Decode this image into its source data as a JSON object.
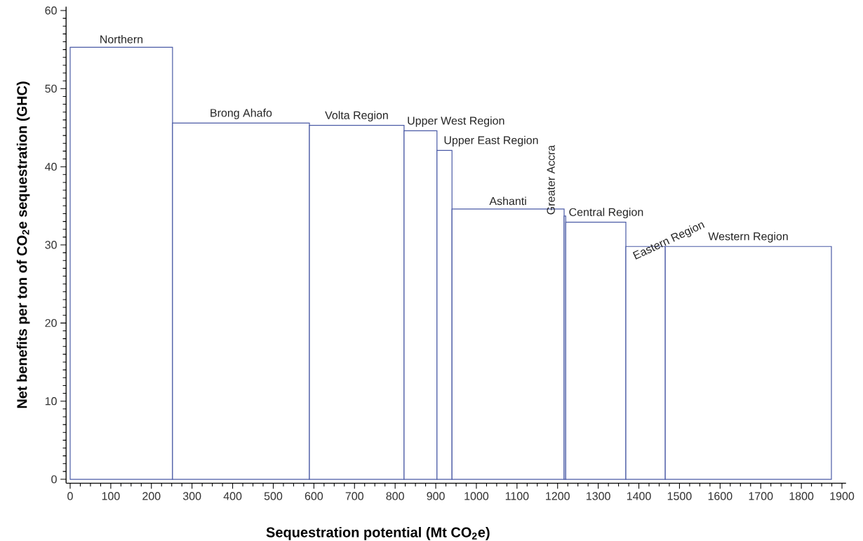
{
  "chart_data": {
    "type": "histogram",
    "xlabel": "Sequestration potential (Mt CO$_{2}$e)",
    "ylabel": "Net benefits per ton of CO$_{2}$e sequestration (GHC)",
    "bins": [
      0,
      252,
      589,
      822,
      903,
      940,
      1216,
      1220,
      1368,
      1465,
      1874
    ],
    "values": [
      55.3,
      45.6,
      45.3,
      44.6,
      42.1,
      34.6,
      33.7,
      32.9,
      29.8,
      29.8
    ],
    "color": "#4b5ba6",
    "xlim": [
      -10,
      1910
    ],
    "ylim": [
      -0.5,
      60.5
    ],
    "xticks": [
      0,
      100,
      200,
      300,
      400,
      500,
      600,
      700,
      800,
      900,
      1000,
      1100,
      1200,
      1300,
      1400,
      1500,
      1600,
      1700,
      1800,
      1900
    ],
    "yticks": [
      0,
      10,
      20,
      30,
      40,
      50,
      60
    ],
    "annotations": [
      "Northern",
      "Brong Ahafo",
      "Volta Region",
      "Upper West Region",
      "Upper East Region",
      "Ashanti",
      "Greater Accra",
      "Central Region",
      "Eastern Region",
      "Western Region"
    ]
  }
}
